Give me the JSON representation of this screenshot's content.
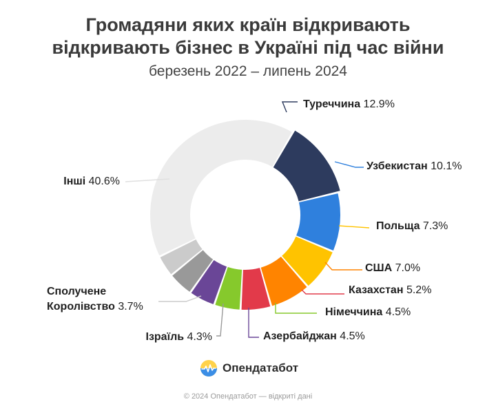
{
  "title_line1": "Громадяни яких країн відкривають",
  "title_line2": "відкривають бізнес в Україні під час війни",
  "subtitle": "березень 2022 – липень 2024",
  "brand": {
    "name": "Опендатабот",
    "icon": "opendatabot-logo-icon"
  },
  "footer": "© 2024 Опендатабот — відкриті дані",
  "chart_data": {
    "type": "pie",
    "variant": "donut",
    "title": "Громадяни яких країн відкривають відкривають бізнес в Україні під час війни",
    "subtitle": "березень 2022 – липень 2024",
    "unit": "%",
    "slices": [
      {
        "label": "Туреччина",
        "value": 12.9,
        "value_label": "12.9%",
        "color": "#2d3b5e"
      },
      {
        "label": "Узбекистан",
        "value": 10.1,
        "value_label": "10.1%",
        "color": "#2f80dd"
      },
      {
        "label": "Польща",
        "value": 7.3,
        "value_label": "7.3%",
        "color": "#ffc300"
      },
      {
        "label": "США",
        "value": 7.0,
        "value_label": "7.0%",
        "color": "#ff8400"
      },
      {
        "label": "Казахстан",
        "value": 5.2,
        "value_label": "5.2%",
        "color": "#e23a4a"
      },
      {
        "label": "Німеччина",
        "value": 4.5,
        "value_label": "4.5%",
        "color": "#86c92c"
      },
      {
        "label": "Азербайджан",
        "value": 4.5,
        "value_label": "4.5%",
        "color": "#6a4697"
      },
      {
        "label": "Ізраїль",
        "value": 4.3,
        "value_label": "4.3%",
        "color": "#999999"
      },
      {
        "label_lines": [
          "Сполучене",
          "Королівство"
        ],
        "value": 3.7,
        "value_label": "3.7%",
        "color": "#cbcbcb"
      },
      {
        "label": "Інші",
        "value": 40.6,
        "value_label": "40.6%",
        "color": "#ececec"
      }
    ]
  }
}
